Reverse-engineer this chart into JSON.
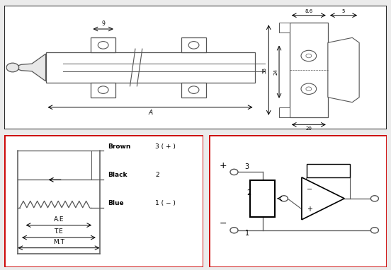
{
  "bg_color": "#ebebeb",
  "line_color": "#555555",
  "black": "#000000",
  "red_box_color": "#cc0000",
  "top_panel": {
    "dim_9": "9",
    "dim_A": "A",
    "dim_8p6": "8.6",
    "dim_5": "5",
    "dim_38": "38",
    "dim_24": "24",
    "dim_20": "20"
  },
  "wire_labels": [
    {
      "color_name": "Brown",
      "num": "3 ( + )"
    },
    {
      "color_name": "Black",
      "num": "2"
    },
    {
      "color_name": "Blue",
      "num": "1 ( − )"
    }
  ],
  "dim_labels": [
    "A.E",
    "T.E",
    "M.T"
  ]
}
